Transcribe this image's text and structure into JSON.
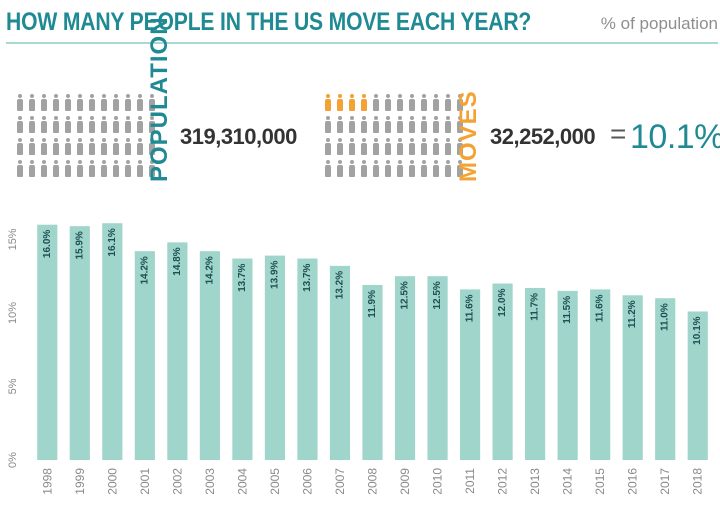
{
  "header": {
    "title": "HOW MANY PEOPLE IN THE US MOVE EACH YEAR?",
    "subtitle": "% of population"
  },
  "stats": {
    "population_label": "POPULATION",
    "population_value": "319,310,000",
    "moves_label": "MOVES",
    "moves_value": "32,252,000",
    "equals": "=",
    "rate": "10.1%"
  },
  "icons": {
    "population_grid": {
      "icon": "person-icon",
      "highlighted": 0,
      "color": "#a2a2a2"
    },
    "moves_grid": {
      "icon": "person-icon",
      "highlighted": 4,
      "color": "#a2a2a2",
      "highlight_color": "#f3a233"
    }
  },
  "colors": {
    "accent": "#1f8a93",
    "bar": "#9fd5cb",
    "orange": "#f3a233",
    "rule": "#a9dad2"
  },
  "chart_data": {
    "type": "bar",
    "categories": [
      "1998",
      "1999",
      "2000",
      "2001",
      "2002",
      "2003",
      "2004",
      "2005",
      "2006",
      "2007",
      "2008",
      "2009",
      "2010",
      "2011",
      "2012",
      "2013",
      "2014",
      "2015",
      "2016",
      "2017",
      "2018"
    ],
    "values": [
      16.0,
      15.9,
      16.1,
      14.2,
      14.8,
      14.2,
      13.7,
      13.9,
      13.7,
      13.2,
      11.9,
      12.5,
      12.5,
      11.6,
      12.0,
      11.7,
      11.5,
      11.6,
      11.2,
      11.0,
      10.1
    ],
    "data_labels": [
      "16.0%",
      "15.9%",
      "16.1%",
      "14.2%",
      "14.8%",
      "14.2%",
      "13.7%",
      "13.9%",
      "13.7%",
      "13.2%",
      "11.9%",
      "12.5%",
      "12.5%",
      "11.6%",
      "12.0%",
      "11.7%",
      "11.5%",
      "11.6%",
      "11.2%",
      "11.0%",
      "10.1%"
    ],
    "yticks": [
      0,
      5,
      10,
      15
    ],
    "ytick_labels": [
      "0%",
      "5%",
      "10%",
      "15%"
    ],
    "ylim": [
      0,
      17
    ],
    "grid": false
  }
}
